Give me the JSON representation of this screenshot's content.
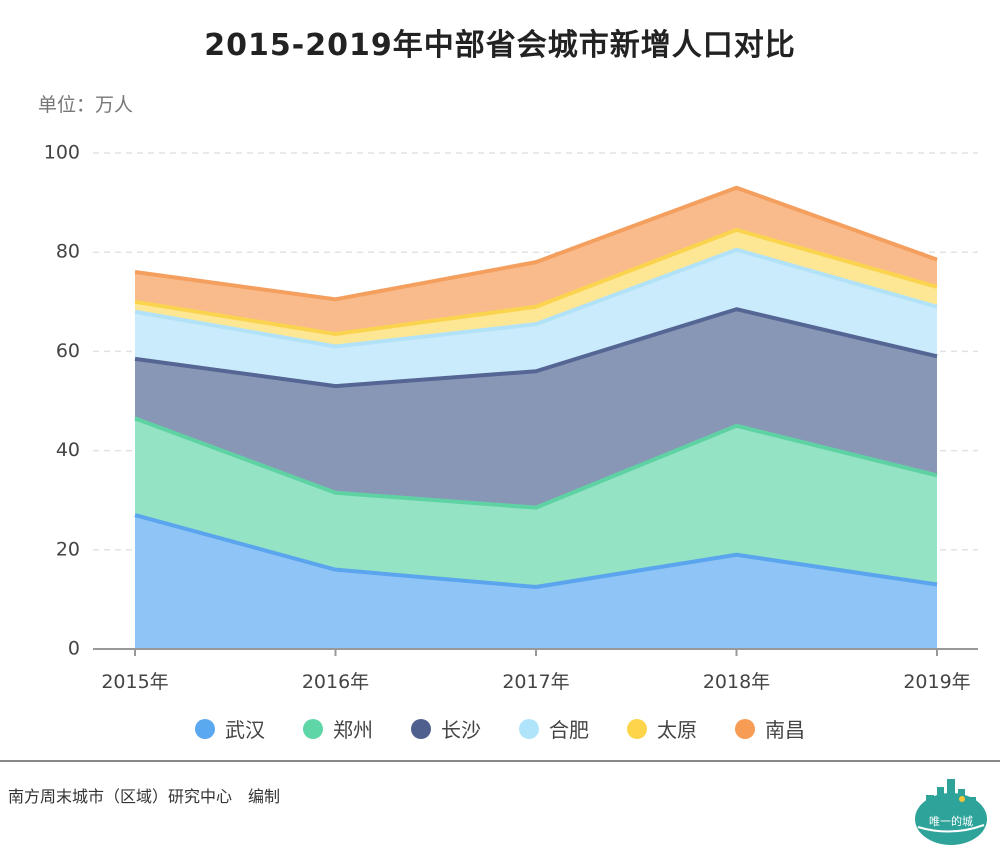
{
  "title": "2015-2019年中部省会城市新增人口对比",
  "unit_label": "单位：万人",
  "credit": "南方周末城市（区域）研究中心　编制",
  "logo_text": "唯一的城",
  "chart_data": {
    "type": "area",
    "stacked": true,
    "categories": [
      "2015年",
      "2016年",
      "2017年",
      "2018年",
      "2019年"
    ],
    "ylim": [
      0,
      100
    ],
    "yticks": [
      0,
      20,
      40,
      60,
      80,
      100
    ],
    "grid": true,
    "legend_position": "bottom",
    "series": [
      {
        "name": "武汉",
        "values": [
          27,
          16,
          12.5,
          19,
          13
        ],
        "fill": "#8fc5f6",
        "line": "#5aa5ee",
        "dot": "#5aa8f0"
      },
      {
        "name": "郑州",
        "values": [
          19.5,
          15.5,
          16,
          26,
          22
        ],
        "fill": "#93e3c4",
        "line": "#5fd2a3",
        "dot": "#5ed6a6"
      },
      {
        "name": "长沙",
        "values": [
          12,
          21.5,
          27.5,
          23.5,
          24
        ],
        "fill": "#8997b7",
        "line": "#566694",
        "dot": "#4f5f8e"
      },
      {
        "name": "合肥",
        "values": [
          9.5,
          8,
          9.5,
          12,
          10
        ],
        "fill": "#c9ebfb",
        "line": "#b2e2f8",
        "dot": "#b0e4fb"
      },
      {
        "name": "太原",
        "values": [
          2,
          2.5,
          3.5,
          4,
          4
        ],
        "fill": "#fde794",
        "line": "#fbd44f",
        "dot": "#fdd54a"
      },
      {
        "name": "南昌",
        "values": [
          6,
          7,
          9,
          8.5,
          5.5
        ],
        "fill": "#f9bb8b",
        "line": "#f49f5e",
        "dot": "#f79c55"
      }
    ]
  }
}
